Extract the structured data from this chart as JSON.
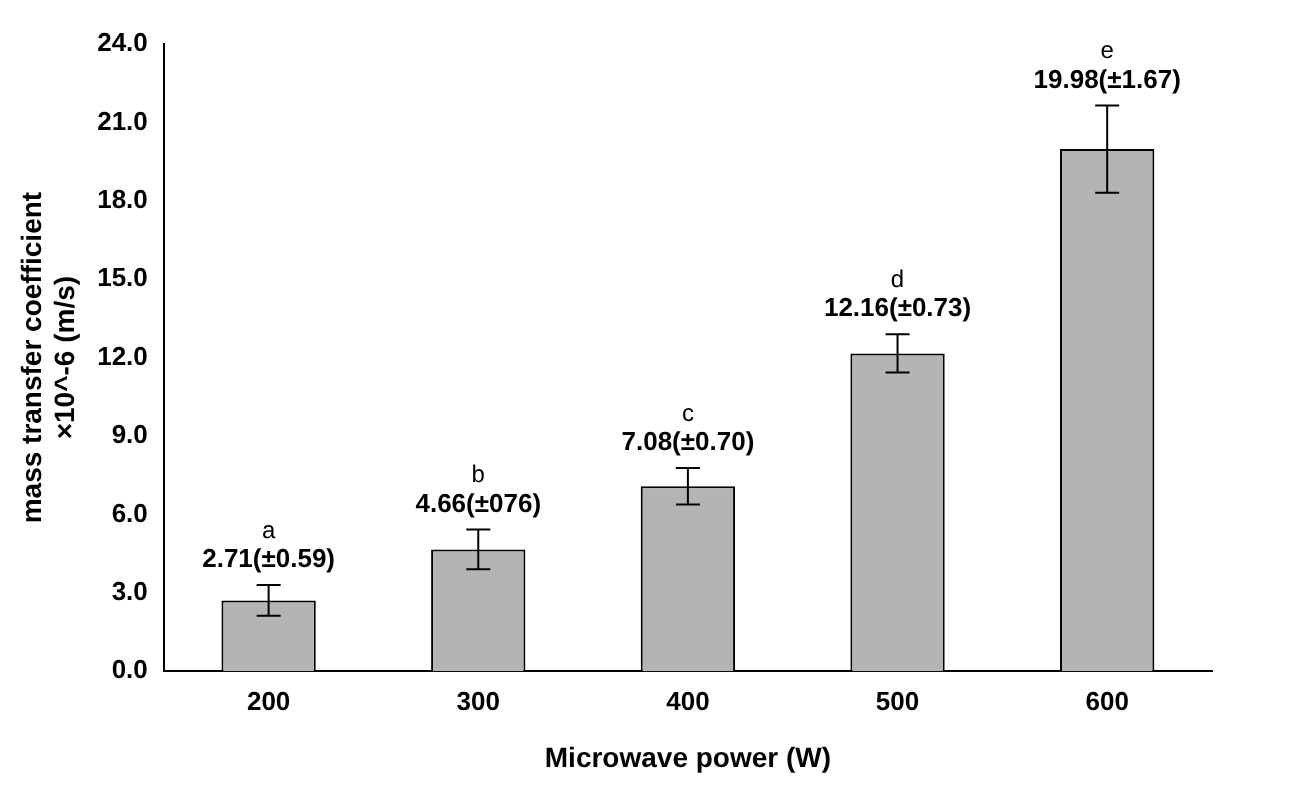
{
  "chart_data": {
    "type": "bar",
    "xlabel": "Microwave power (W)",
    "ylabel": "mass transfer coefficient\n×10^-6 (m/s)",
    "categories": [
      "200",
      "300",
      "400",
      "500",
      "600"
    ],
    "values": [
      2.71,
      4.66,
      7.08,
      12.16,
      19.98
    ],
    "errors": [
      0.59,
      0.76,
      0.7,
      0.73,
      1.67
    ],
    "value_labels": [
      "2.71(±0.59)",
      "4.66(±076)",
      "7.08(±0.70)",
      "12.16(±0.73)",
      "19.98(±1.67)"
    ],
    "annotations": [
      "a",
      "b",
      "c",
      "d",
      "e"
    ],
    "color": "#b4b4b4",
    "ylim": [
      0,
      24
    ],
    "yticks": [
      {
        "value": 0,
        "label": "0.0"
      },
      {
        "value": 3,
        "label": "3.0"
      },
      {
        "value": 6,
        "label": "6.0"
      },
      {
        "value": 9,
        "label": "9.0"
      },
      {
        "value": 12,
        "label": "12.0"
      },
      {
        "value": 15,
        "label": "15.0"
      },
      {
        "value": 18,
        "label": "18.0"
      },
      {
        "value": 21,
        "label": "21.0"
      },
      {
        "value": 24,
        "label": "24.0"
      }
    ],
    "grid": false,
    "legend": false
  }
}
